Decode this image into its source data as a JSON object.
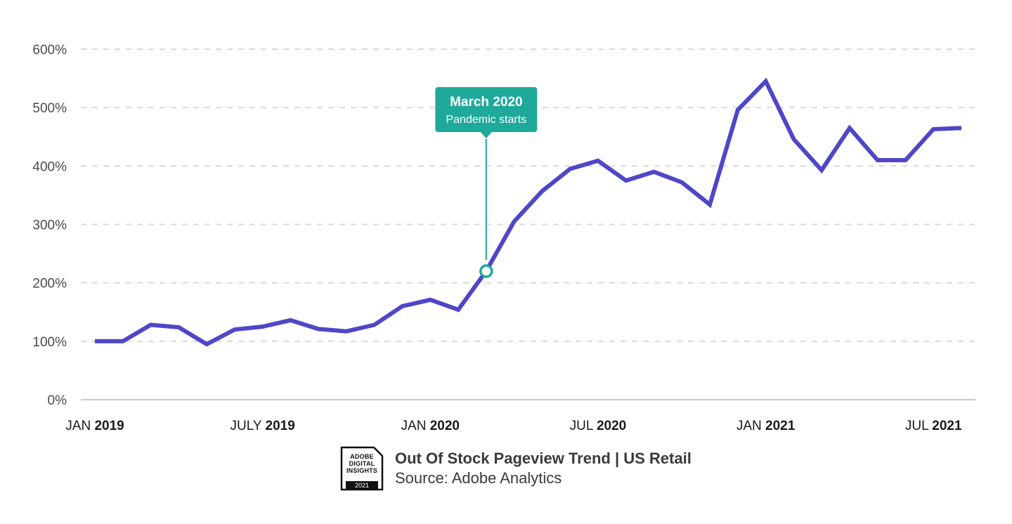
{
  "chart_data": {
    "type": "line",
    "x": [
      "2019-01",
      "2019-02",
      "2019-03",
      "2019-04",
      "2019-05",
      "2019-06",
      "2019-07",
      "2019-08",
      "2019-09",
      "2019-10",
      "2019-11",
      "2019-12",
      "2020-01",
      "2020-02",
      "2020-03",
      "2020-04",
      "2020-05",
      "2020-06",
      "2020-07",
      "2020-08",
      "2020-09",
      "2020-10",
      "2020-11",
      "2020-12",
      "2021-01",
      "2021-02",
      "2021-03",
      "2021-04",
      "2021-05",
      "2021-06",
      "2021-07",
      "2021-08"
    ],
    "series": [
      {
        "values": [
          100,
          100,
          128,
          124,
          95,
          120,
          125,
          136,
          121,
          117,
          128,
          160,
          171,
          154,
          220,
          305,
          357,
          395,
          409,
          375,
          390,
          372,
          334,
          496,
          545,
          446,
          393,
          465,
          410,
          410,
          463,
          465
        ],
        "color": "#4f46c8"
      }
    ],
    "ylim": [
      0,
      600
    ],
    "yticks": [
      0,
      100,
      200,
      300,
      400,
      500,
      600
    ],
    "ytick_labels": [
      "0%",
      "100%",
      "200%",
      "300%",
      "400%",
      "500%",
      "600%"
    ],
    "xtick_labels": [
      {
        "month": "JAN",
        "year": "2019"
      },
      {
        "month": "JULY",
        "year": "2019"
      },
      {
        "month": "JAN",
        "year": "2020"
      },
      {
        "month": "JUL",
        "year": "2020"
      },
      {
        "month": "JAN",
        "year": "2021"
      },
      {
        "month": "JUL",
        "year": "2021"
      }
    ],
    "xtick_dates": [
      "2019-01",
      "2019-07",
      "2020-01",
      "2020-07",
      "2021-01",
      "2021-07"
    ],
    "grid": true,
    "annotation": {
      "x": "2020-03",
      "y": 220,
      "title": "March 2020",
      "subtitle": "Pandemic starts",
      "color": "#1fa99b"
    }
  },
  "footer": {
    "badge_lines": [
      "ADOBE",
      "DIGITAL",
      "INSIGHTS"
    ],
    "badge_year": "2021",
    "title": "Out Of Stock Pageview Trend | US Retail",
    "source": "Source: Adobe Analytics"
  }
}
